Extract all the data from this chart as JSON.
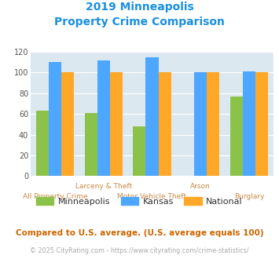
{
  "title_line1": "2019 Minneapolis",
  "title_line2": "Property Crime Comparison",
  "title_color": "#1a8fe0",
  "categories": [
    "All Property Crime",
    "Larceny & Theft",
    "Motor Vehicle Theft",
    "Arson",
    "Burglary"
  ],
  "minneapolis": [
    63,
    61,
    48,
    0,
    77
  ],
  "kansas": [
    110,
    112,
    115,
    100,
    101
  ],
  "national": [
    100,
    100,
    100,
    100,
    100
  ],
  "minneapolis_color": "#8bc34a",
  "kansas_color": "#4da6ff",
  "national_color": "#ffa726",
  "bg_color": "#dce8f0",
  "ylim": [
    0,
    120
  ],
  "yticks": [
    0,
    20,
    40,
    60,
    80,
    100,
    120
  ],
  "footnote1": "Compared to U.S. average. (U.S. average equals 100)",
  "footnote2": "© 2025 CityRating.com - https://www.cityrating.com/crime-statistics/",
  "footnote1_color": "#cc6600",
  "footnote2_color": "#aaaaaa",
  "legend_labels": [
    "Minneapolis",
    "Kansas",
    "National"
  ]
}
